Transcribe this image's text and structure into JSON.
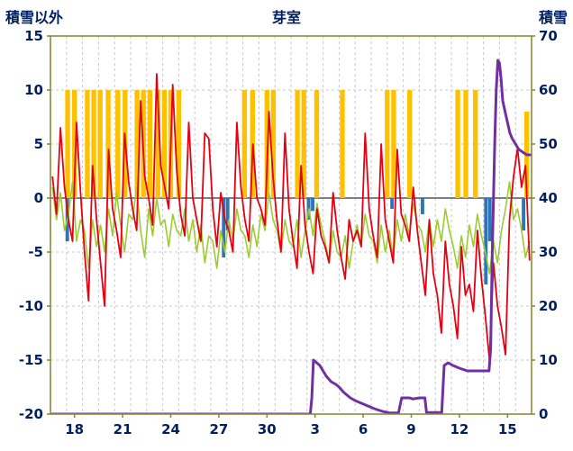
{
  "chart_data": {
    "type": "line",
    "title": "芽室",
    "x_domain": [
      0,
      30
    ],
    "x_ticks": [
      {
        "pos": 1.5,
        "label": "18"
      },
      {
        "pos": 4.5,
        "label": "21"
      },
      {
        "pos": 7.5,
        "label": "24"
      },
      {
        "pos": 10.5,
        "label": "27"
      },
      {
        "pos": 13.5,
        "label": "30"
      },
      {
        "pos": 16.5,
        "label": "3"
      },
      {
        "pos": 19.5,
        "label": "6"
      },
      {
        "pos": 22.5,
        "label": "9"
      },
      {
        "pos": 25.5,
        "label": "12"
      },
      {
        "pos": 28.5,
        "label": "15"
      }
    ],
    "left_axis": {
      "label": "積雪以外",
      "min": -20,
      "max": 15,
      "ticks": [
        15,
        10,
        5,
        0,
        -5,
        -10,
        -15,
        -20
      ]
    },
    "right_axis": {
      "label": "積雪",
      "min": 0,
      "max": 70,
      "ticks": [
        70,
        60,
        50,
        40,
        30,
        20,
        10,
        0
      ]
    },
    "grid": {
      "vertical_step": 1,
      "zero_line": 0
    },
    "colors": {
      "temperature": "#e60012",
      "green_series": "#9acd32",
      "sunshine": "#ffc000",
      "precipitation": "#2e75b6",
      "snow_depth": "#7030a0",
      "axis_text": "#002060",
      "border": "#8a8a3a",
      "grid": "#c9c9c9",
      "zero_line": "#7f7f7f"
    },
    "series": [
      {
        "name": "sunshine-bars",
        "type": "bar",
        "axis": "left",
        "color": "#ffc000",
        "bar_width": 0.3,
        "bars": [
          [
            1.07,
            10
          ],
          [
            1.5,
            10
          ],
          [
            2.3,
            10
          ],
          [
            2.7,
            10
          ],
          [
            3.1,
            10
          ],
          [
            3.6,
            10
          ],
          [
            4.2,
            10
          ],
          [
            4.65,
            10
          ],
          [
            5.4,
            10
          ],
          [
            5.8,
            10
          ],
          [
            6.2,
            10
          ],
          [
            6.7,
            10
          ],
          [
            7.1,
            10
          ],
          [
            7.5,
            10
          ],
          [
            8.0,
            10
          ],
          [
            12.1,
            10
          ],
          [
            12.6,
            10
          ],
          [
            13.5,
            10
          ],
          [
            13.9,
            10
          ],
          [
            15.4,
            10
          ],
          [
            15.8,
            10
          ],
          [
            16.6,
            10
          ],
          [
            18.2,
            10
          ],
          [
            21.0,
            10
          ],
          [
            21.4,
            10
          ],
          [
            22.4,
            10
          ],
          [
            25.4,
            10
          ],
          [
            25.9,
            10
          ],
          [
            26.5,
            10
          ],
          [
            29.7,
            8
          ]
        ]
      },
      {
        "name": "precipitation-bars",
        "type": "bar",
        "axis": "left",
        "color": "#2e75b6",
        "bar_width": 0.22,
        "bars": [
          [
            1.05,
            -4
          ],
          [
            10.8,
            -5.5
          ],
          [
            11.05,
            -3
          ],
          [
            16.1,
            -2
          ],
          [
            16.35,
            -1.2
          ],
          [
            21.3,
            -1
          ],
          [
            23.2,
            -1.5
          ],
          [
            27.15,
            -8
          ],
          [
            27.4,
            -4
          ],
          [
            29.5,
            -3
          ]
        ]
      },
      {
        "name": "green-line",
        "type": "line",
        "axis": "left",
        "color": "#9acd32",
        "width": 1.6,
        "x_start": 0.125,
        "x_step": 0.25,
        "values": [
          1,
          -2,
          0.5,
          -3,
          -1.5,
          1.5,
          -4,
          -2,
          -3,
          -6.5,
          -2,
          -4.5,
          -2.5,
          -5,
          -1,
          -3.5,
          0.5,
          -2.5,
          -5,
          -1.5,
          -2,
          1,
          -3,
          -5.5,
          -1,
          -3.5,
          0,
          -2.5,
          -2,
          -4.5,
          -1.5,
          -3,
          -3.5,
          -1,
          -4,
          -2,
          -5,
          -2.5,
          -6,
          -3.5,
          -4,
          -6.5,
          -3,
          -5,
          -2,
          -4,
          -1,
          -3,
          -3.5,
          -5.5,
          -2.5,
          -4.5,
          -1.5,
          -3,
          0.5,
          -2,
          -3,
          -5,
          -2,
          -4,
          -4.5,
          -2,
          -5.5,
          -3,
          -1,
          -3.5,
          -0.5,
          -2.5,
          -4,
          -6,
          -3,
          -5,
          -5.5,
          -3.5,
          -6.5,
          -4,
          -2.5,
          -4.5,
          -1.5,
          -3.5,
          -4,
          -6,
          -2.5,
          -5,
          -3,
          -5.5,
          -2,
          -4,
          -1.5,
          -3.5,
          -0.5,
          -2.5,
          -3,
          -5,
          -2,
          -4.5,
          -2,
          -4,
          -1,
          -3,
          -4.5,
          -6.5,
          -3.5,
          -5.5,
          -2.5,
          -4.5,
          -1.5,
          -3.5,
          -5,
          -7,
          -4,
          -6,
          -3,
          -1,
          1.5,
          -2,
          -1,
          -3,
          -5.5,
          -4
        ]
      },
      {
        "name": "temperature-line",
        "type": "line",
        "axis": "left",
        "color": "#e60012",
        "width": 1.8,
        "x_start": 0.125,
        "x_step": 0.25,
        "values": [
          2,
          -1.5,
          6.5,
          1,
          -2,
          -4,
          7,
          0.5,
          -5,
          -9.5,
          3,
          -2,
          -6,
          -10,
          4.5,
          -1,
          -3,
          -5.5,
          6,
          1.5,
          -1,
          -3,
          9,
          2,
          0,
          -2.5,
          11.5,
          3,
          1,
          -1,
          10.5,
          2.5,
          -1.5,
          -3.5,
          7,
          0,
          -2,
          -4,
          6,
          5.5,
          -1,
          -4.5,
          0.5,
          -2,
          -3,
          -5,
          7,
          1,
          -2,
          -4,
          5,
          0,
          -1,
          -2.5,
          8,
          2,
          -2,
          -5,
          6,
          -1,
          -4,
          -6.5,
          3,
          -2.5,
          -5,
          -7,
          -1,
          -3.5,
          -4.5,
          -6,
          0.5,
          -3,
          -5.5,
          -7.5,
          -2,
          -4,
          -3,
          -4.5,
          6,
          -1,
          -3.5,
          -5.5,
          5,
          -2,
          -4,
          -6,
          4.5,
          -1.5,
          -2.5,
          -4,
          1,
          -3,
          -6,
          -9,
          -2,
          -7,
          -9,
          -12.5,
          -4,
          -8,
          -10,
          -13,
          -4.5,
          -9,
          -8,
          -10.5,
          -3,
          -7.5,
          -11,
          -15,
          -6,
          -10,
          -12,
          -14.5,
          -2,
          2,
          4.6,
          1,
          3,
          -5.8
        ]
      },
      {
        "name": "snow-depth-line",
        "type": "line",
        "axis": "right",
        "color": "#7030a0",
        "width": 3,
        "points": [
          [
            0,
            0
          ],
          [
            16.2,
            0
          ],
          [
            16.3,
            3
          ],
          [
            16.4,
            10
          ],
          [
            16.6,
            9.5
          ],
          [
            16.8,
            9
          ],
          [
            17.0,
            8
          ],
          [
            17.2,
            7
          ],
          [
            17.5,
            6
          ],
          [
            17.8,
            5.5
          ],
          [
            18.0,
            5
          ],
          [
            18.3,
            4
          ],
          [
            18.7,
            3
          ],
          [
            19.0,
            2.5
          ],
          [
            19.4,
            2
          ],
          [
            19.8,
            1.5
          ],
          [
            20.2,
            1
          ],
          [
            20.7,
            0.5
          ],
          [
            21.2,
            0.2
          ],
          [
            21.7,
            0.2
          ],
          [
            21.9,
            3
          ],
          [
            22.4,
            3
          ],
          [
            22.6,
            2.8
          ],
          [
            23.0,
            3
          ],
          [
            23.35,
            3
          ],
          [
            23.45,
            0.3
          ],
          [
            24.4,
            0.3
          ],
          [
            24.55,
            9
          ],
          [
            24.8,
            9.5
          ],
          [
            25.1,
            9
          ],
          [
            25.5,
            8.5
          ],
          [
            26.0,
            8
          ],
          [
            26.3,
            8
          ],
          [
            26.6,
            8
          ],
          [
            27.0,
            8
          ],
          [
            27.35,
            8
          ],
          [
            27.45,
            12
          ],
          [
            27.55,
            30
          ],
          [
            27.7,
            50
          ],
          [
            27.8,
            60
          ],
          [
            27.9,
            65.5
          ],
          [
            28.0,
            65
          ],
          [
            28.1,
            62
          ],
          [
            28.2,
            58
          ],
          [
            28.35,
            56
          ],
          [
            28.5,
            54
          ],
          [
            28.65,
            52
          ],
          [
            28.8,
            51
          ],
          [
            29.0,
            50
          ],
          [
            29.2,
            49
          ],
          [
            29.45,
            48.5
          ],
          [
            29.7,
            48
          ],
          [
            30,
            48
          ]
        ]
      }
    ]
  }
}
